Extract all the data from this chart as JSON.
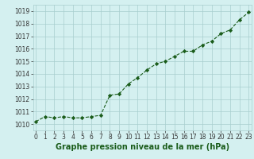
{
  "x": [
    0,
    1,
    2,
    3,
    4,
    5,
    6,
    7,
    8,
    9,
    10,
    11,
    12,
    13,
    14,
    15,
    16,
    17,
    18,
    19,
    20,
    21,
    22,
    23
  ],
  "y": [
    1010.2,
    1010.6,
    1010.5,
    1010.6,
    1010.5,
    1010.5,
    1010.6,
    1010.7,
    1012.3,
    1012.4,
    1013.2,
    1013.7,
    1014.3,
    1014.8,
    1015.0,
    1015.4,
    1015.8,
    1015.8,
    1016.3,
    1016.6,
    1017.2,
    1017.5,
    1018.3,
    1018.9
  ],
  "line_color": "#1a5c1a",
  "marker": "D",
  "marker_size": 2.2,
  "bg_color": "#d4f0f0",
  "grid_color": "#a8cece",
  "xlabel": "Graphe pression niveau de la mer (hPa)",
  "xlabel_fontsize": 7,
  "ylabel_ticks": [
    1010,
    1011,
    1012,
    1013,
    1014,
    1015,
    1016,
    1017,
    1018,
    1019
  ],
  "xticks": [
    0,
    1,
    2,
    3,
    4,
    5,
    6,
    7,
    8,
    9,
    10,
    11,
    12,
    13,
    14,
    15,
    16,
    17,
    18,
    19,
    20,
    21,
    22,
    23
  ],
  "ylim": [
    1009.5,
    1019.5
  ],
  "xlim": [
    -0.3,
    23.3
  ],
  "tick_fontsize": 5.5
}
